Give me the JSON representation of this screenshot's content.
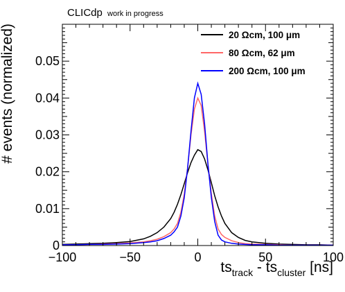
{
  "header": {
    "experiment": "CLICdp",
    "status": "work in progress"
  },
  "chart_data": {
    "type": "line",
    "title": "",
    "xlabel": {
      "base1": "ts",
      "sub1": "track",
      "mid": " - ts",
      "sub2": "cluster",
      "unit": " [ns]"
    },
    "ylabel": "# events (normalized)",
    "xlim": [
      -100,
      100
    ],
    "ylim": [
      0,
      0.06
    ],
    "xticks": [
      -100,
      -50,
      0,
      50,
      100
    ],
    "xtick_labels": [
      "−100",
      "−50",
      "0",
      "50",
      "100"
    ],
    "yticks": [
      0,
      0.01,
      0.02,
      0.03,
      0.04,
      0.05
    ],
    "ytick_labels": [
      "0",
      "0.01",
      "0.02",
      "0.03",
      "0.04",
      "0.05"
    ],
    "grid": false,
    "legend_position": "top-right",
    "x": [
      -100,
      -90,
      -80,
      -70,
      -60,
      -50,
      -40,
      -35,
      -30,
      -25,
      -20,
      -17.5,
      -15,
      -12.5,
      -10,
      -7.5,
      -5,
      -2.5,
      0,
      2.5,
      5,
      7.5,
      10,
      12.5,
      15,
      17.5,
      20,
      25,
      30,
      35,
      40,
      50,
      60,
      70,
      80,
      90,
      100
    ],
    "series": [
      {
        "name": "20 Ωcm, 100 μm",
        "color": "#000000",
        "values": [
          0.0003,
          0.0004,
          0.0005,
          0.0006,
          0.0008,
          0.0011,
          0.0018,
          0.0025,
          0.0035,
          0.005,
          0.0073,
          0.009,
          0.0112,
          0.0138,
          0.0168,
          0.0198,
          0.0225,
          0.0245,
          0.026,
          0.0255,
          0.0235,
          0.0205,
          0.017,
          0.0135,
          0.0105,
          0.008,
          0.006,
          0.0035,
          0.0022,
          0.0014,
          0.001,
          0.0006,
          0.0004,
          0.0003,
          0.0002,
          0.0002,
          0.0001
        ]
      },
      {
        "name": "80 Ωcm, 62 μm",
        "color": "#ff6666",
        "values": [
          0.0002,
          0.0002,
          0.0003,
          0.0004,
          0.0005,
          0.0007,
          0.001,
          0.0013,
          0.0017,
          0.0024,
          0.0035,
          0.0045,
          0.006,
          0.009,
          0.014,
          0.021,
          0.03,
          0.037,
          0.04,
          0.038,
          0.031,
          0.022,
          0.014,
          0.008,
          0.0045,
          0.003,
          0.0022,
          0.0013,
          0.0008,
          0.0005,
          0.0004,
          0.0003,
          0.0002,
          0.0001,
          0.0001,
          0.0001,
          0.0001
        ]
      },
      {
        "name": "200 Ωcm, 100 μm",
        "color": "#0000ff",
        "values": [
          0.0002,
          0.0002,
          0.0003,
          0.0003,
          0.0004,
          0.0005,
          0.0008,
          0.001,
          0.0013,
          0.0019,
          0.0028,
          0.0037,
          0.005,
          0.008,
          0.013,
          0.021,
          0.031,
          0.04,
          0.044,
          0.041,
          0.033,
          0.022,
          0.013,
          0.0065,
          0.0028,
          0.0015,
          0.001,
          0.0006,
          0.0004,
          0.0003,
          0.0002,
          0.0002,
          0.0001,
          0.0001,
          0.0001,
          0.0001,
          0.0001
        ]
      }
    ]
  }
}
